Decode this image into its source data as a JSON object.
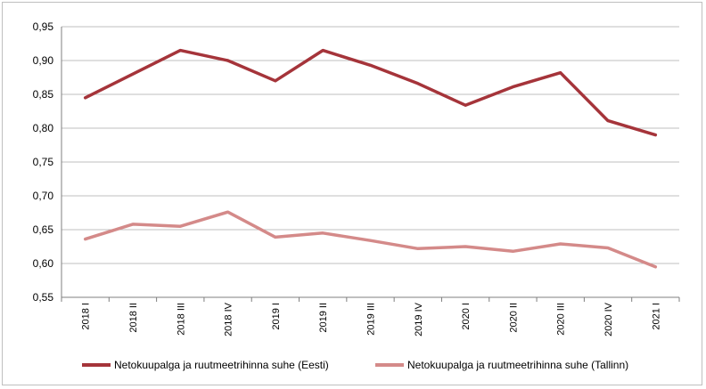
{
  "chart_data": {
    "type": "line",
    "categories": [
      "2018 I",
      "2018 II",
      "2018 III",
      "2018 IV",
      "2019 I",
      "2019 II",
      "2019 III",
      "2019 IV",
      "2020 I",
      "2020 II",
      "2020 III",
      "2020 IV",
      "2021 I"
    ],
    "series": [
      {
        "name": "Netokuupalga ja ruutmeetrihinna suhe (Eesti)",
        "color": "#a5343a",
        "values": [
          0.845,
          0.88,
          0.915,
          0.9,
          0.87,
          0.915,
          0.893,
          0.866,
          0.834,
          0.861,
          0.882,
          0.811,
          0.79
        ]
      },
      {
        "name": "Netokuupalga ja ruutmeetrihinna suhe (Tallinn)",
        "color": "#d48a89",
        "values": [
          0.636,
          0.658,
          0.655,
          0.676,
          0.639,
          0.645,
          0.634,
          0.622,
          0.625,
          0.618,
          0.629,
          0.623,
          0.595
        ]
      }
    ],
    "yticks": [
      "0,55",
      "0,60",
      "0,65",
      "0,70",
      "0,75",
      "0,80",
      "0,85",
      "0,90",
      "0,95"
    ],
    "ylim": [
      0.55,
      0.95
    ],
    "grid": true,
    "legend_position": "bottom"
  }
}
